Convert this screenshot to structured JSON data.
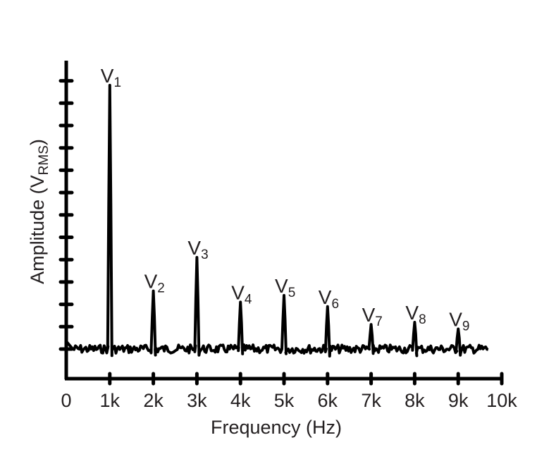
{
  "chart_data": {
    "type": "line",
    "title": "",
    "xlabel": "Frequency (Hz)",
    "ylabel": "Amplitude (V",
    "ylabel_subscript": "RMS",
    "ylabel_close": ")",
    "xlim": [
      0,
      10000
    ],
    "x_ticks": [
      0,
      1000,
      2000,
      3000,
      4000,
      5000,
      6000,
      7000,
      8000,
      9000,
      10000
    ],
    "x_tick_labels": [
      "0",
      "1k",
      "2k",
      "3k",
      "4k",
      "5k",
      "6k",
      "7k",
      "8k",
      "9k",
      "10k"
    ],
    "y_tick_count": 13,
    "y_tick_labels": [],
    "grid": false,
    "legend": null,
    "noise_floor": 0,
    "peaks": [
      {
        "label": "V",
        "sub": "1",
        "freq": 1000,
        "amplitude": 11.8
      },
      {
        "label": "V",
        "sub": "2",
        "freq": 2000,
        "amplitude": 2.6
      },
      {
        "label": "V",
        "sub": "3",
        "freq": 3000,
        "amplitude": 4.1
      },
      {
        "label": "V",
        "sub": "4",
        "freq": 4000,
        "amplitude": 2.1
      },
      {
        "label": "V",
        "sub": "5",
        "freq": 5000,
        "amplitude": 2.4
      },
      {
        "label": "V",
        "sub": "6",
        "freq": 6000,
        "amplitude": 1.9
      },
      {
        "label": "V",
        "sub": "7",
        "freq": 7000,
        "amplitude": 1.1
      },
      {
        "label": "V",
        "sub": "8",
        "freq": 8000,
        "amplitude": 1.2
      },
      {
        "label": "V",
        "sub": "9",
        "freq": 9000,
        "amplitude": 0.9
      }
    ],
    "x": [
      1000,
      2000,
      3000,
      4000,
      5000,
      6000,
      7000,
      8000,
      9000
    ],
    "series": [
      {
        "name": "Spectrum",
        "values": [
          11.8,
          2.6,
          4.1,
          2.1,
          2.4,
          1.9,
          1.1,
          1.2,
          0.9
        ]
      }
    ],
    "amplitude_units": "y-axis tick divisions (unlabeled)"
  }
}
